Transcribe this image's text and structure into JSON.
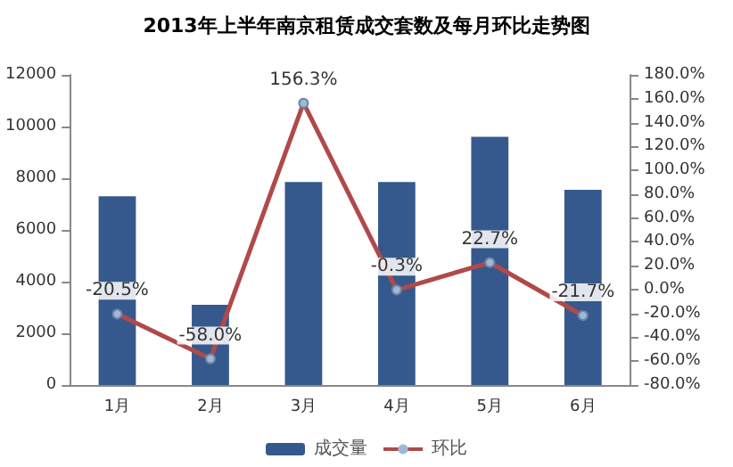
{
  "chart_data": {
    "type": "bar",
    "title": "2013年上半年南京租赁成交套数及每月环比走势图",
    "categories": [
      "1月",
      "2月",
      "3月",
      "4月",
      "5月",
      "6月"
    ],
    "series": [
      {
        "name": "成交量",
        "color": "#35598c",
        "values": [
          7300,
          3100,
          7850,
          7850,
          9600,
          7550
        ]
      },
      {
        "name": "环比",
        "type": "line",
        "axis": "y2",
        "color": "#b04a4a",
        "marker": "circle",
        "values": [
          -20.5,
          -58.0,
          156.3,
          -0.3,
          22.7,
          -21.7
        ],
        "value_labels": [
          "-20.5%",
          "-58.0%",
          "156.3%",
          "-0.3%",
          "22.7%",
          "-21.7%"
        ]
      }
    ],
    "ylim": [
      0,
      12000
    ],
    "yticks": [
      0,
      2000,
      4000,
      6000,
      8000,
      10000,
      12000
    ],
    "y2lim": [
      -80,
      180
    ],
    "y2ticks": [
      {
        "value": -80,
        "label": "-80.0%"
      },
      {
        "value": -60,
        "label": "-60.0%"
      },
      {
        "value": -40,
        "label": "-40.0%"
      },
      {
        "value": -20,
        "label": "-20.0%"
      },
      {
        "value": 0,
        "label": "0.0%"
      },
      {
        "value": 20,
        "label": "20.0%"
      },
      {
        "value": 40,
        "label": "40.0%"
      },
      {
        "value": 60,
        "label": "60.0%"
      },
      {
        "value": 80,
        "label": "80.0%"
      },
      {
        "value": 100,
        "label": "100.0%"
      },
      {
        "value": 120,
        "label": "120.0%"
      },
      {
        "value": 140,
        "label": "140.0%"
      },
      {
        "value": 160,
        "label": "160.0%"
      },
      {
        "value": 180,
        "label": "180.0%"
      }
    ],
    "grid": false,
    "legend": "bottom"
  }
}
